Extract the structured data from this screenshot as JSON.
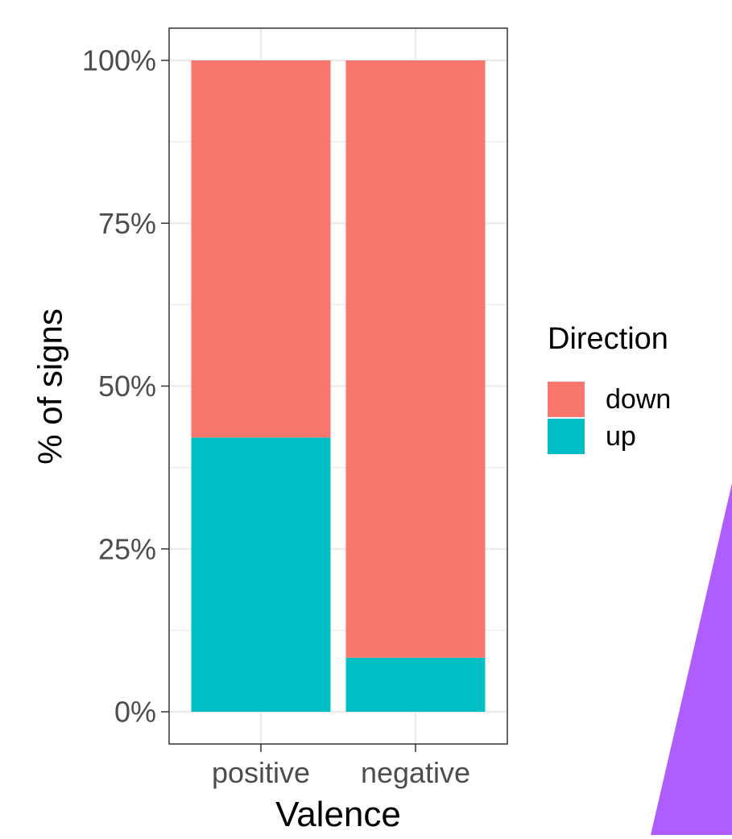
{
  "chart_data": {
    "type": "bar",
    "stacked": true,
    "percent": true,
    "categories": [
      "positive",
      "negative"
    ],
    "series": [
      {
        "name": "down",
        "color": "#F8766D",
        "values": [
          57.9,
          91.7
        ]
      },
      {
        "name": "up",
        "color": "#00BFC4",
        "values": [
          42.1,
          8.3
        ]
      }
    ],
    "xlabel": "Valence",
    "ylabel": "% of signs",
    "yticks": [
      "0%",
      "25%",
      "50%",
      "75%",
      "100%"
    ],
    "ylim": [
      0,
      100
    ],
    "grid": true,
    "legend": {
      "title": "Direction",
      "position": "right",
      "entries": [
        "down",
        "up"
      ]
    }
  },
  "decoration": {
    "shape_color": "#AF5DFF"
  }
}
